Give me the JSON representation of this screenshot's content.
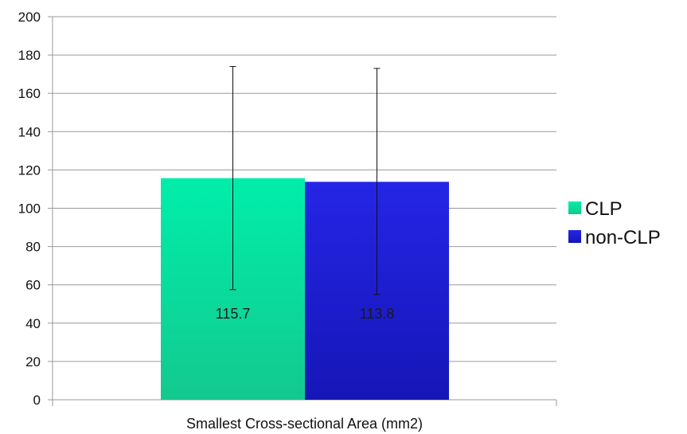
{
  "chart_data": {
    "type": "bar",
    "title": "",
    "xlabel": "Smallest Cross-sectional Area (mm2)",
    "ylabel": "",
    "ylim": [
      0,
      200
    ],
    "yticks": [
      0,
      20,
      40,
      60,
      80,
      100,
      120,
      140,
      160,
      180,
      200
    ],
    "grid": true,
    "legend_position": "right",
    "categories": [
      "Smallest Cross-sectional Area (mm2)"
    ],
    "series": [
      {
        "name": "CLP",
        "values": [
          115.7
        ],
        "error_low": [
          57.5
        ],
        "error_high": [
          174.0
        ],
        "data_label": "115.7",
        "color": "#13c98e",
        "color_top": "#00eeaa"
      },
      {
        "name": "non-CLP",
        "values": [
          113.8
        ],
        "error_low": [
          55.0
        ],
        "error_high": [
          173.0
        ],
        "data_label": "113.8",
        "color": "#1616b8",
        "color_top": "#2525e6"
      }
    ]
  }
}
